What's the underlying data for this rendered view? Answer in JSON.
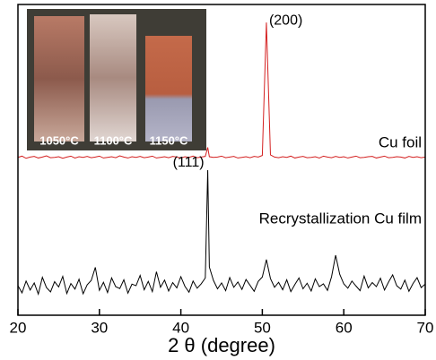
{
  "chart_data": {
    "type": "line",
    "xlabel": "2 θ (degree)",
    "x": [
      20.0,
      20.5,
      21.0,
      21.5,
      22.0,
      22.5,
      23.0,
      23.5,
      24.0,
      24.5,
      25.0,
      25.5,
      26.0,
      26.5,
      27.0,
      27.5,
      28.0,
      28.5,
      29.0,
      29.5,
      30.0,
      30.5,
      31.0,
      31.5,
      32.0,
      32.5,
      33.0,
      33.5,
      34.0,
      34.5,
      35.0,
      35.5,
      36.0,
      36.5,
      37.0,
      37.5,
      38.0,
      38.5,
      39.0,
      39.5,
      40.0,
      40.5,
      41.0,
      41.5,
      42.0,
      42.5,
      43.0,
      43.3,
      43.5,
      44.0,
      44.5,
      45.0,
      45.5,
      46.0,
      46.5,
      47.0,
      47.5,
      48.0,
      48.5,
      49.0,
      49.5,
      50.0,
      50.5,
      51.0,
      51.5,
      52.0,
      52.5,
      53.0,
      53.5,
      54.0,
      54.5,
      55.0,
      55.5,
      56.0,
      56.5,
      57.0,
      57.5,
      58.0,
      58.5,
      59.0,
      59.5,
      60.0,
      60.5,
      61.0,
      61.5,
      62.0,
      62.5,
      63.0,
      63.5,
      64.0,
      64.5,
      65.0,
      65.5,
      66.0,
      66.5,
      67.0,
      67.5,
      68.0,
      68.5,
      69.0,
      69.5,
      70.0
    ],
    "series": [
      {
        "name": "Cu foil",
        "color": "#d42020",
        "values": [
          50.8,
          51.2,
          50.5,
          50.9,
          51.1,
          50.6,
          50.9,
          51.3,
          50.7,
          50.8,
          51.0,
          50.5,
          50.9,
          51.2,
          50.6,
          51.0,
          50.8,
          51.1,
          50.7,
          50.9,
          51.2,
          50.6,
          50.8,
          51.0,
          50.7,
          51.3,
          50.9,
          50.6,
          51.0,
          50.8,
          51.1,
          50.7,
          50.9,
          51.2,
          50.6,
          50.8,
          51.0,
          50.7,
          51.1,
          50.9,
          50.6,
          51.0,
          50.8,
          51.2,
          50.7,
          50.9,
          51.1,
          54.0,
          51.0,
          50.8,
          50.9,
          51.2,
          50.7,
          50.9,
          51.1,
          50.6,
          50.8,
          51.0,
          50.7,
          51.1,
          50.9,
          51.4,
          94.2,
          51.6,
          50.9,
          50.7,
          51.0,
          50.8,
          51.2,
          50.6,
          50.9,
          51.1,
          50.7,
          50.8,
          51.0,
          50.6,
          51.2,
          50.9,
          50.7,
          51.1,
          50.8,
          51.0,
          50.6,
          50.9,
          51.2,
          50.7,
          50.8,
          51.0,
          51.1,
          50.6,
          50.9,
          51.2,
          50.7,
          50.8,
          51.0,
          50.9,
          50.6,
          51.1,
          50.8,
          51.0,
          50.7,
          50.9
        ]
      },
      {
        "name": "Recrystallization Cu film",
        "color": "#000000",
        "values": [
          9.5,
          7.2,
          11.0,
          8.1,
          10.4,
          6.8,
          12.2,
          8.9,
          7.5,
          10.8,
          9.1,
          12.5,
          7.0,
          10.2,
          8.4,
          11.6,
          6.9,
          9.8,
          11.2,
          15.4,
          8.0,
          10.6,
          7.3,
          12.0,
          9.2,
          8.6,
          11.4,
          7.1,
          10.0,
          9.5,
          12.8,
          8.2,
          10.9,
          7.6,
          14.0,
          9.0,
          11.3,
          7.8,
          10.5,
          8.8,
          12.4,
          9.3,
          7.4,
          11.0,
          8.7,
          10.1,
          12.0,
          46.7,
          15.5,
          11.2,
          8.5,
          10.4,
          7.9,
          12.1,
          9.0,
          10.7,
          8.3,
          11.5,
          9.6,
          7.7,
          10.9,
          12.3,
          17.9,
          11.8,
          9.0,
          10.6,
          8.2,
          11.4,
          7.6,
          9.9,
          12.0,
          8.5,
          10.3,
          7.8,
          11.7,
          9.2,
          10.1,
          8.0,
          12.4,
          19.3,
          13.2,
          10.1,
          8.7,
          11.0,
          9.4,
          7.9,
          12.6,
          8.8,
          10.5,
          9.2,
          11.9,
          8.1,
          10.7,
          13.0,
          9.5,
          8.4,
          11.3,
          7.7,
          10.2,
          12.1,
          8.9,
          10.0
        ]
      }
    ],
    "xlim": [
      20,
      70
    ],
    "xticks": [
      20,
      30,
      40,
      50,
      60,
      70
    ],
    "ylim": [
      0,
      100
    ],
    "annotations": [
      {
        "text": "(200)",
        "x": 50.5,
        "y": 94.2
      },
      {
        "text": "(111)",
        "x": 43.3,
        "y": 46.7
      }
    ],
    "inset_labels": [
      "1050°C",
      "1100°C",
      "1150°C"
    ]
  }
}
